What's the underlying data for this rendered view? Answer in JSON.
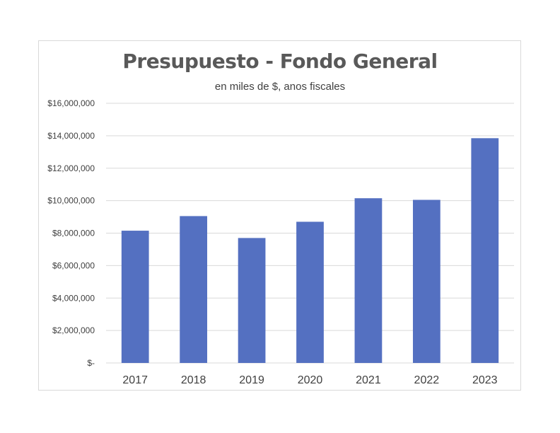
{
  "chart_data": {
    "type": "bar",
    "title": "Presupuesto - Fondo General",
    "subtitle": "en miles de $, anos fiscales",
    "xlabel": "",
    "ylabel": "",
    "categories": [
      "2017",
      "2018",
      "2019",
      "2020",
      "2021",
      "2022",
      "2023"
    ],
    "values": [
      8150000,
      9050000,
      7700000,
      8700000,
      10150000,
      10050000,
      13850000
    ],
    "ylim": [
      0,
      16000000
    ],
    "yticks": [
      0,
      2000000,
      4000000,
      6000000,
      8000000,
      10000000,
      12000000,
      14000000,
      16000000
    ],
    "ytick_labels": [
      "$-",
      "$2,000,000",
      "$4,000,000",
      "$6,000,000",
      "$8,000,000",
      "$10,000,000",
      "$12,000,000",
      "$14,000,000",
      "$16,000,000"
    ],
    "grid": true,
    "legend": "none",
    "bar_color": "#5470c1",
    "grid_color": "#d9d9d9"
  }
}
